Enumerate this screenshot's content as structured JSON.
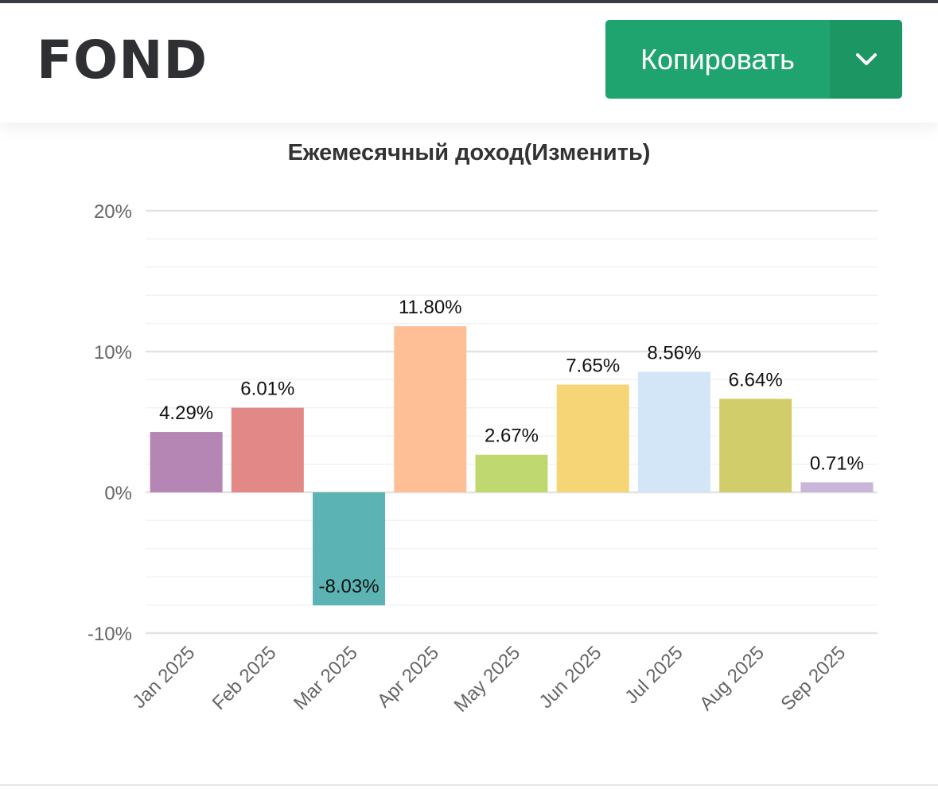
{
  "header": {
    "fund_name": "FOND",
    "copy_label": "Копировать",
    "dropdown_icon": "chevron-down-icon"
  },
  "chart_data": {
    "type": "bar",
    "title": "Ежемесячный доход(Изменить)",
    "categories": [
      "Jan 2025",
      "Feb 2025",
      "Mar 2025",
      "Apr 2025",
      "May 2025",
      "Jun 2025",
      "Jul 2025",
      "Aug 2025",
      "Sep 2025"
    ],
    "values": [
      4.29,
      6.01,
      -8.03,
      11.8,
      2.67,
      7.65,
      8.56,
      6.64,
      0.71
    ],
    "data_labels": [
      "4.29%",
      "6.01%",
      "-8.03%",
      "11.80%",
      "2.67%",
      "7.65%",
      "8.56%",
      "6.64%",
      "0.71%"
    ],
    "colors": [
      "#b586b3",
      "#e28886",
      "#5cb3b3",
      "#ffbf96",
      "#bfd970",
      "#f5d575",
      "#d3e6f8",
      "#d0cd6a",
      "#c8b5da"
    ],
    "yticks": [
      -10,
      0,
      10,
      20
    ],
    "ytick_labels": [
      "-10%",
      "0%",
      "10%",
      "20%"
    ],
    "ylim": [
      -10,
      20
    ],
    "minor_step": 2,
    "xlabel": "",
    "ylabel": "",
    "grid": true,
    "legend": "none"
  }
}
